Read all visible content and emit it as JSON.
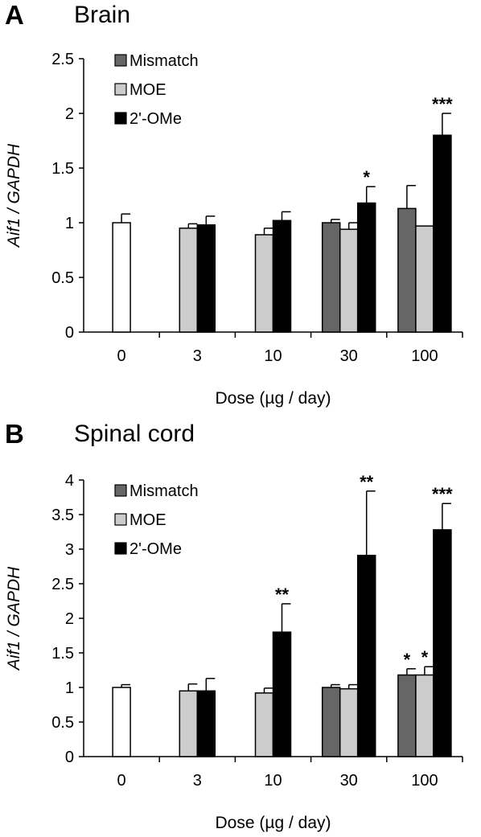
{
  "colors": {
    "0": "#ffffff",
    "Mismatch": "#666666",
    "MOE": "#cccccc",
    "2'-OMe": "#000000"
  },
  "chart_data": [
    {
      "type": "bar",
      "panel": "A",
      "title": "Brain",
      "xlabel": "Dose (µg / day)",
      "ylabel": "Aif1 / GAPDH",
      "ylim": [
        0,
        2.5
      ],
      "yticks": [
        "0",
        "0.5",
        "1",
        "1.5",
        "2",
        "2.5"
      ],
      "ytick_values": [
        0,
        0.5,
        1,
        1.5,
        2,
        2.5
      ],
      "categories": [
        "0",
        "3",
        "10",
        "30",
        "100"
      ],
      "legend": [
        "Mismatch",
        "MOE",
        "2'-OMe"
      ],
      "legend_position": "top-left",
      "control": {
        "category": "0",
        "value": 1.0,
        "error": 0.08
      },
      "series": [
        {
          "name": "Mismatch",
          "values": [
            null,
            null,
            null,
            1.0,
            1.13
          ],
          "errors": [
            null,
            null,
            null,
            0.03,
            0.21
          ],
          "sig": [
            "",
            "",
            "",
            "",
            ""
          ]
        },
        {
          "name": "MOE",
          "values": [
            null,
            0.95,
            0.89,
            0.94,
            0.97
          ],
          "errors": [
            null,
            0.04,
            0.06,
            0.06,
            0.0
          ],
          "sig": [
            "",
            "",
            "",
            "",
            ""
          ]
        },
        {
          "name": "2'-OMe",
          "values": [
            null,
            0.98,
            1.02,
            1.18,
            1.8
          ],
          "errors": [
            null,
            0.08,
            0.08,
            0.15,
            0.2
          ],
          "sig": [
            "",
            "",
            "",
            "*",
            "***"
          ]
        }
      ]
    },
    {
      "type": "bar",
      "panel": "B",
      "title": "Spinal cord",
      "xlabel": "Dose (µg / day)",
      "ylabel": "Aif1 / GAPDH",
      "ylim": [
        0,
        4
      ],
      "yticks": [
        "0",
        "0.5",
        "1",
        "1.5",
        "2",
        "2.5",
        "3",
        "3.5",
        "4"
      ],
      "ytick_values": [
        0,
        0.5,
        1,
        1.5,
        2,
        2.5,
        3,
        3.5,
        4
      ],
      "categories": [
        "0",
        "3",
        "10",
        "30",
        "100"
      ],
      "legend": [
        "Mismatch",
        "MOE",
        "2'-OMe"
      ],
      "legend_position": "top-left",
      "control": {
        "category": "0",
        "value": 1.0,
        "error": 0.04
      },
      "series": [
        {
          "name": "Mismatch",
          "values": [
            null,
            null,
            null,
            1.0,
            1.18
          ],
          "errors": [
            null,
            null,
            null,
            0.04,
            0.09
          ],
          "sig": [
            "",
            "",
            "",
            "",
            "*"
          ]
        },
        {
          "name": "MOE",
          "values": [
            null,
            0.95,
            0.92,
            0.98,
            1.18
          ],
          "errors": [
            null,
            0.1,
            0.07,
            0.06,
            0.12
          ],
          "sig": [
            "",
            "",
            "",
            "",
            "*"
          ]
        },
        {
          "name": "2'-OMe",
          "values": [
            null,
            0.95,
            1.8,
            2.91,
            3.28
          ],
          "errors": [
            null,
            0.18,
            0.41,
            0.93,
            0.38
          ],
          "sig": [
            "",
            "",
            "**",
            "**",
            "***"
          ]
        }
      ]
    }
  ]
}
